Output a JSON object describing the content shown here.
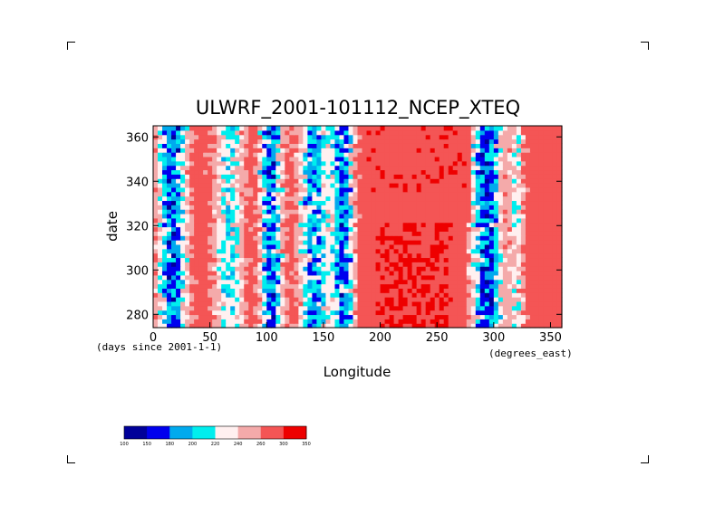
{
  "chart_data": {
    "type": "heatmap",
    "title": "ULWRF_2001-101112_NCEP_XTEQ",
    "xlabel": "Longitude",
    "ylabel": "date",
    "x_units": "(degrees_east)",
    "y_units": "(days since 2001-1-1)",
    "xlim": [
      0,
      360
    ],
    "ylim": [
      274,
      365
    ],
    "x_ticks": [
      0,
      50,
      100,
      150,
      200,
      250,
      300,
      350
    ],
    "y_ticks": [
      280,
      300,
      320,
      340,
      360
    ],
    "colorbar": {
      "levels": [
        100,
        150,
        180,
        200,
        220,
        240,
        260,
        300,
        350
      ],
      "tick_labels": [
        "100",
        "150",
        "180",
        "200",
        "220",
        "240",
        "260",
        "300",
        "350"
      ],
      "colors": [
        "#000099",
        "#0000ee",
        "#00aaee",
        "#00eeee",
        "#fff0f0",
        "#f4aaaa",
        "#f45555",
        "#ee0000"
      ]
    },
    "convective_bands": [
      {
        "lon_center": 15,
        "lon_width": 28,
        "strength": 0.95
      },
      {
        "lon_center": 65,
        "lon_width": 30,
        "strength": 0.55
      },
      {
        "lon_center": 102,
        "lon_width": 22,
        "strength": 0.9
      },
      {
        "lon_center": 140,
        "lon_width": 30,
        "strength": 0.75
      },
      {
        "lon_center": 165,
        "lon_width": 22,
        "strength": 0.85
      },
      {
        "lon_center": 292,
        "lon_width": 30,
        "strength": 0.95
      },
      {
        "lon_center": 318,
        "lon_width": 14,
        "strength": 0.45
      }
    ],
    "warm_region": {
      "lon_min": 180,
      "lon_max": 275,
      "day_min": 274,
      "day_max": 320
    }
  }
}
